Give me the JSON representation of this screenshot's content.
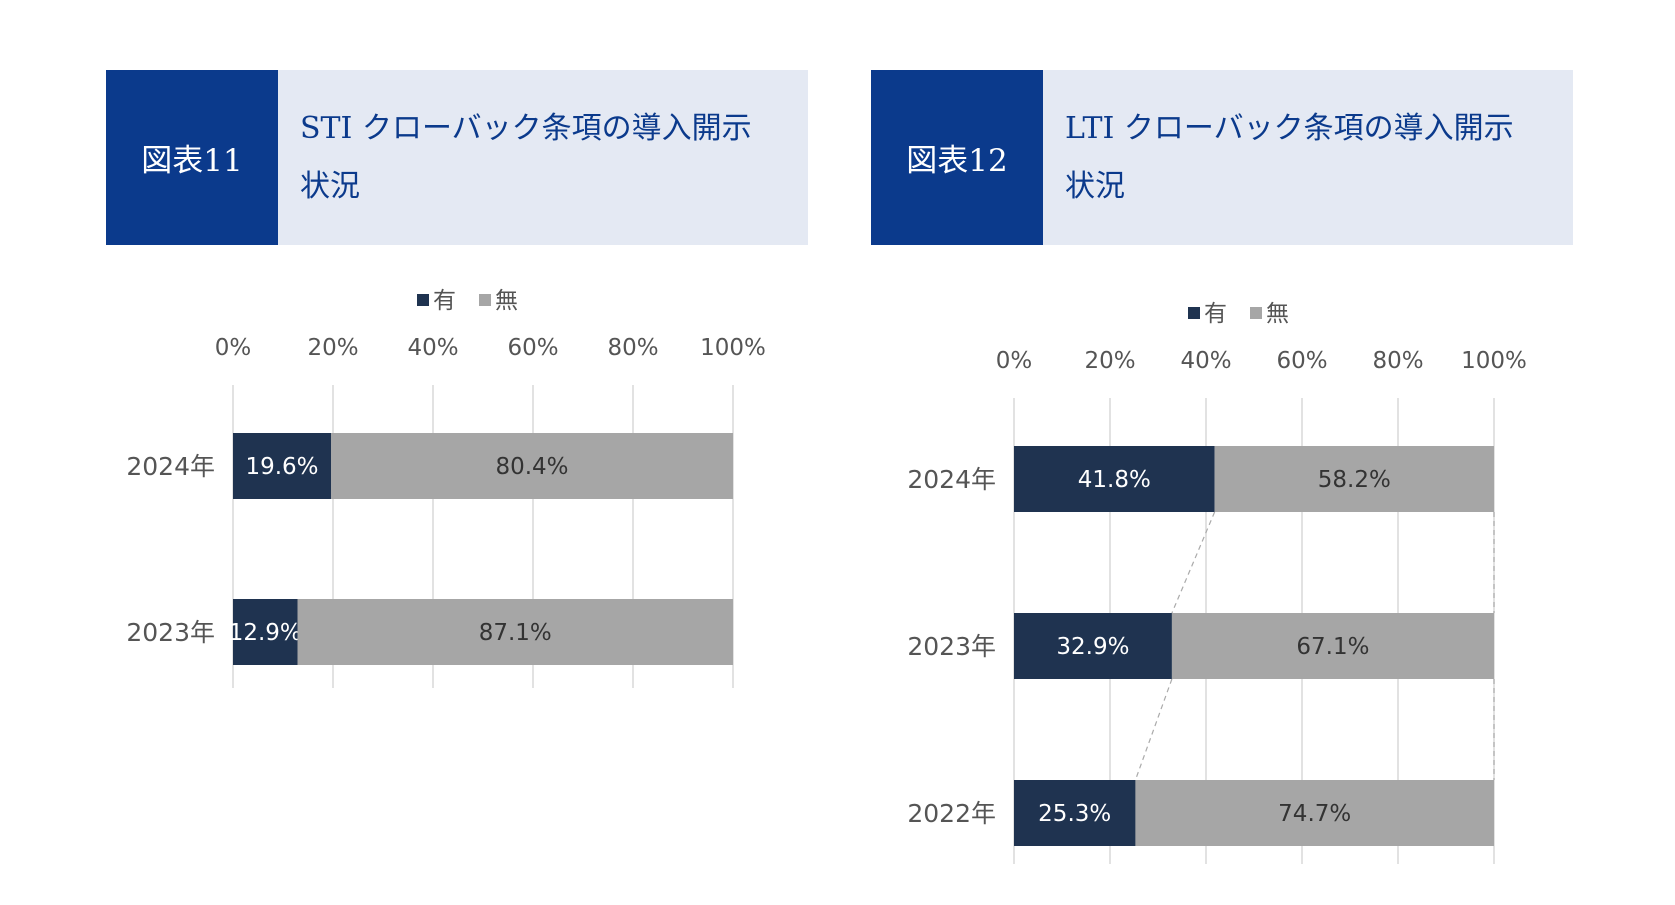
{
  "colors": {
    "has": "#1f3350",
    "none": "#a6a6a6",
    "grid": "#d9d9d9",
    "label_dark_bg": "#ffffff",
    "label_light_bg": "#333333"
  },
  "figures": [
    {
      "label": "図表11",
      "title_line1": "STI クローバック条項の導入開示",
      "title_line2": "状況"
    },
    {
      "label": "図表12",
      "title_line1": "LTI クローバック条項の導入開示",
      "title_line2": "状況"
    }
  ],
  "chart_data": [
    {
      "type": "bar",
      "orientation": "horizontal",
      "stacked": true,
      "percent": true,
      "categories": [
        "2024年",
        "2023年"
      ],
      "series": [
        {
          "name": "有",
          "values": [
            19.6,
            12.9
          ],
          "labels": [
            "19.6%",
            "12.9%"
          ]
        },
        {
          "name": "無",
          "values": [
            80.4,
            87.1
          ],
          "labels": [
            "80.4%",
            "87.1%"
          ]
        }
      ],
      "xlim": [
        0,
        100
      ],
      "ticks": [
        "0%",
        "20%",
        "40%",
        "60%",
        "80%",
        "100%"
      ],
      "grid": true,
      "legend": "top",
      "title": "",
      "xlabel": "",
      "ylabel": ""
    },
    {
      "type": "bar",
      "orientation": "horizontal",
      "stacked": true,
      "percent": true,
      "series_lines": true,
      "categories": [
        "2024年",
        "2023年",
        "2022年"
      ],
      "series": [
        {
          "name": "有",
          "values": [
            41.8,
            32.9,
            25.3
          ],
          "labels": [
            "41.8%",
            "32.9%",
            "25.3%"
          ]
        },
        {
          "name": "無",
          "values": [
            58.2,
            67.1,
            74.7
          ],
          "labels": [
            "58.2%",
            "67.1%",
            "74.7%"
          ]
        }
      ],
      "xlim": [
        0,
        100
      ],
      "ticks": [
        "0%",
        "20%",
        "40%",
        "60%",
        "80%",
        "100%"
      ],
      "grid": true,
      "legend": "top",
      "title": "",
      "xlabel": "",
      "ylabel": ""
    }
  ]
}
